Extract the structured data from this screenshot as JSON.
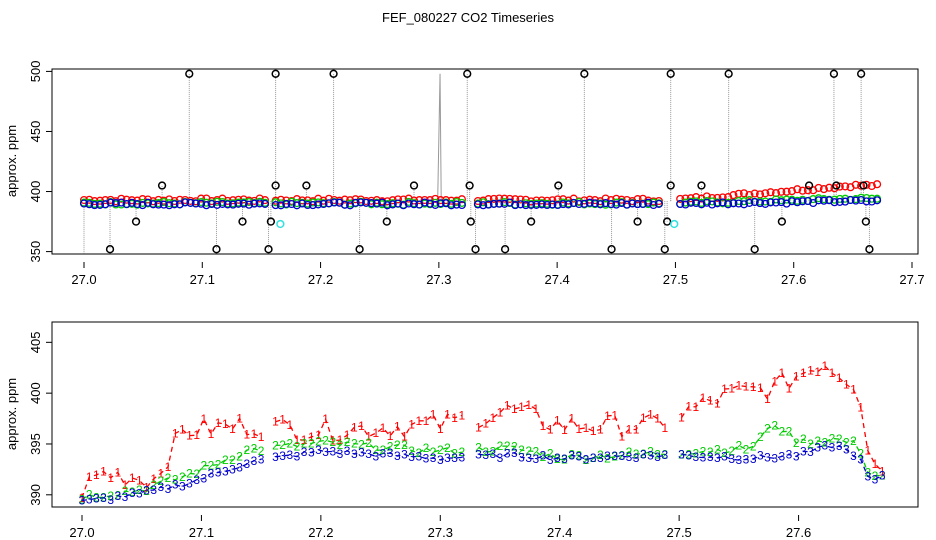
{
  "title": "FEF_080227  CO2 Timeseries",
  "colors": {
    "ch1": "#ff0000",
    "ch2": "#00cc00",
    "ch3": "#0000cc",
    "ref": "#000000",
    "cal": "#33e0e0",
    "drop": "#999999"
  },
  "chart_data": [
    {
      "type": "scatter",
      "panel": "top",
      "title": "FEF_080227  CO2 Timeseries",
      "xlabel": "",
      "ylabel": "approx. ppm",
      "xlim": [
        27.0,
        27.7
      ],
      "ylim": [
        348,
        502
      ],
      "xticks": [
        "27.0",
        "27.1",
        "27.2",
        "27.3",
        "27.4",
        "27.5",
        "27.6",
        "27.7"
      ],
      "yticks": [
        "350",
        "400",
        "450",
        "500"
      ],
      "series": [
        {
          "name": "1",
          "color": "#ff0000",
          "base": 389,
          "rise": 16
        },
        {
          "name": "2",
          "color": "#00cc00",
          "base": 389,
          "rise": 5
        },
        {
          "name": "3",
          "color": "#0000cc",
          "base": 389,
          "rise": 3
        }
      ],
      "reference_points": [
        {
          "x": 27.022,
          "y": 352
        },
        {
          "x": 27.044,
          "y": 375
        },
        {
          "x": 27.066,
          "y": 405
        },
        {
          "x": 27.089,
          "y": 498
        },
        {
          "x": 27.112,
          "y": 352
        },
        {
          "x": 27.134,
          "y": 375
        },
        {
          "x": 27.156,
          "y": 352
        },
        {
          "x": 27.158,
          "y": 375
        },
        {
          "x": 27.162,
          "y": 405
        },
        {
          "x": 27.162,
          "y": 498
        },
        {
          "x": 27.188,
          "y": 405
        },
        {
          "x": 27.211,
          "y": 498
        },
        {
          "x": 27.233,
          "y": 352
        },
        {
          "x": 27.256,
          "y": 375
        },
        {
          "x": 27.279,
          "y": 405
        },
        {
          "x": 27.324,
          "y": 498
        },
        {
          "x": 27.326,
          "y": 405
        },
        {
          "x": 27.327,
          "y": 375
        },
        {
          "x": 27.331,
          "y": 352
        },
        {
          "x": 27.356,
          "y": 352
        },
        {
          "x": 27.378,
          "y": 375
        },
        {
          "x": 27.401,
          "y": 405
        },
        {
          "x": 27.423,
          "y": 498
        },
        {
          "x": 27.446,
          "y": 352
        },
        {
          "x": 27.468,
          "y": 375
        },
        {
          "x": 27.491,
          "y": 352
        },
        {
          "x": 27.493,
          "y": 375
        },
        {
          "x": 27.496,
          "y": 405
        },
        {
          "x": 27.496,
          "y": 498
        },
        {
          "x": 27.522,
          "y": 405
        },
        {
          "x": 27.545,
          "y": 498
        },
        {
          "x": 27.567,
          "y": 352
        },
        {
          "x": 27.59,
          "y": 375
        },
        {
          "x": 27.613,
          "y": 405
        },
        {
          "x": 27.634,
          "y": 498
        },
        {
          "x": 27.636,
          "y": 405
        },
        {
          "x": 27.657,
          "y": 498
        },
        {
          "x": 27.659,
          "y": 405
        },
        {
          "x": 27.661,
          "y": 375
        },
        {
          "x": 27.664,
          "y": 352
        }
      ],
      "cal_points": [
        {
          "x": 27.166,
          "y": 373
        },
        {
          "x": 27.499,
          "y": 373
        }
      ]
    },
    {
      "type": "line",
      "panel": "bottom",
      "xlabel": "",
      "ylabel": "approx. ppm",
      "xlim": [
        27.0,
        27.7
      ],
      "ylim": [
        388.8,
        407
      ],
      "xticks": [
        "27.0",
        "27.1",
        "27.2",
        "27.3",
        "27.4",
        "27.5",
        "27.6"
      ],
      "yticks": [
        "390",
        "395",
        "400",
        "405"
      ],
      "series": [
        {
          "name": "1",
          "marker": "1",
          "color": "#ff0000",
          "keyframes": [
            [
              27.0,
              390.1
            ],
            [
              27.015,
              391.8
            ],
            [
              27.06,
              391.2
            ],
            [
              27.085,
              396.0
            ],
            [
              27.14,
              396.5
            ],
            [
              27.2,
              396.0
            ],
            [
              27.3,
              396.6
            ],
            [
              27.36,
              398.0
            ],
            [
              27.4,
              396.5
            ],
            [
              27.48,
              396.5
            ],
            [
              27.5,
              397.5
            ],
            [
              27.54,
              399.5
            ],
            [
              27.58,
              400.2
            ],
            [
              27.62,
              402.8
            ],
            [
              27.65,
              400.5
            ],
            [
              27.66,
              393.0
            ],
            [
              27.672,
              392.2
            ]
          ]
        },
        {
          "name": "2",
          "marker": "2",
          "color": "#00cc00",
          "keyframes": [
            [
              27.0,
              389.8
            ],
            [
              27.05,
              390.5
            ],
            [
              27.09,
              392.0
            ],
            [
              27.14,
              394.4
            ],
            [
              27.2,
              395.1
            ],
            [
              27.3,
              394.3
            ],
            [
              27.36,
              394.6
            ],
            [
              27.4,
              393.7
            ],
            [
              27.45,
              393.9
            ],
            [
              27.5,
              394.2
            ],
            [
              27.56,
              394.6
            ],
            [
              27.58,
              397.0
            ],
            [
              27.6,
              395.2
            ],
            [
              27.63,
              395.5
            ],
            [
              27.65,
              394.9
            ],
            [
              27.66,
              391.8
            ],
            [
              27.672,
              392.0
            ]
          ]
        },
        {
          "name": "3",
          "marker": "3",
          "color": "#0000cc",
          "keyframes": [
            [
              27.0,
              389.3
            ],
            [
              27.05,
              390.1
            ],
            [
              27.09,
              391.2
            ],
            [
              27.14,
              393.2
            ],
            [
              27.2,
              394.3
            ],
            [
              27.3,
              393.6
            ],
            [
              27.36,
              393.9
            ],
            [
              27.4,
              393.6
            ],
            [
              27.45,
              393.8
            ],
            [
              27.5,
              393.9
            ],
            [
              27.56,
              393.6
            ],
            [
              27.6,
              393.9
            ],
            [
              27.63,
              394.9
            ],
            [
              27.65,
              393.8
            ],
            [
              27.66,
              391.2
            ],
            [
              27.672,
              391.8
            ]
          ]
        }
      ],
      "segments": [
        [
          27.0,
          27.155
        ],
        [
          27.162,
          27.322
        ],
        [
          27.332,
          27.488
        ],
        [
          27.502,
          27.672
        ]
      ]
    }
  ]
}
